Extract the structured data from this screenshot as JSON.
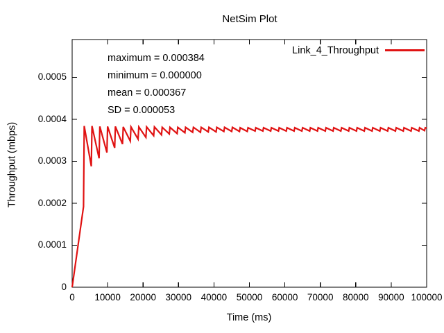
{
  "window": {
    "title": "NetSim Plot"
  },
  "chart_data": {
    "type": "line",
    "title": "NetSim Plot",
    "xlabel": "Time (ms)",
    "ylabel": "Throughput (mbps)",
    "xlim": [
      0,
      100000
    ],
    "ylim": [
      0,
      0.00059
    ],
    "grid": false,
    "x_ticks": [
      0,
      10000,
      20000,
      30000,
      40000,
      50000,
      60000,
      70000,
      80000,
      90000,
      100000
    ],
    "x_tick_labels": [
      "0",
      "10000",
      "20000",
      "30000",
      "40000",
      "50000",
      "60000",
      "70000",
      "80000",
      "90000",
      "100000"
    ],
    "y_ticks": [
      0,
      0.0001,
      0.0002,
      0.0003,
      0.0004,
      0.0005
    ],
    "y_tick_labels": [
      "0",
      "0.0001",
      "0.0002",
      "0.0003",
      "0.0004",
      "0.0005"
    ],
    "legend": {
      "position": "top-right",
      "entries": [
        {
          "label": "Link_4_Throughput",
          "color": "#e01212"
        }
      ]
    },
    "stats": [
      "maximum = 0.000384",
      "minimum = 0.000000",
      "mean = 0.000367",
      "SD = 0.000053"
    ],
    "series": [
      {
        "name": "Link_4_Throughput",
        "color": "#e01212",
        "points": [
          [
            0,
            0
          ],
          [
            3200,
            0.000192
          ],
          [
            3400,
            0.000384
          ],
          [
            5400,
            0.000288
          ],
          [
            5600,
            0.000384
          ],
          [
            7600,
            0.000307
          ],
          [
            7800,
            0.000383
          ],
          [
            9800,
            0.000321
          ],
          [
            10000,
            0.000383
          ],
          [
            12000,
            0.000332
          ],
          [
            12200,
            0.000383
          ],
          [
            14200,
            0.000341
          ],
          [
            14400,
            0.000382
          ],
          [
            16400,
            0.000348
          ],
          [
            16600,
            0.000382
          ],
          [
            18600,
            0.000353
          ],
          [
            18800,
            0.000382
          ],
          [
            20800,
            0.000357
          ],
          [
            21000,
            0.000382
          ],
          [
            23000,
            0.000361
          ],
          [
            23200,
            0.000382
          ],
          [
            25200,
            0.000363
          ],
          [
            25400,
            0.000381
          ],
          [
            27400,
            0.000365
          ],
          [
            27600,
            0.000381
          ],
          [
            29600,
            0.000366
          ],
          [
            29800,
            0.000381
          ],
          [
            31800,
            0.000368
          ],
          [
            32000,
            0.000381
          ],
          [
            34000,
            0.000369
          ],
          [
            34200,
            0.000381
          ],
          [
            36200,
            0.000369
          ],
          [
            36400,
            0.000381
          ],
          [
            38400,
            0.00037
          ],
          [
            38600,
            0.000381
          ],
          [
            40600,
            0.00037
          ],
          [
            40800,
            0.000381
          ],
          [
            42800,
            0.000371
          ],
          [
            43000,
            0.000381
          ],
          [
            45000,
            0.000371
          ],
          [
            45200,
            0.000381
          ],
          [
            47200,
            0.000371
          ],
          [
            47400,
            0.00038
          ],
          [
            49400,
            0.000371
          ],
          [
            49600,
            0.00038
          ],
          [
            51600,
            0.000372
          ],
          [
            51800,
            0.00038
          ],
          [
            53800,
            0.000372
          ],
          [
            54000,
            0.00038
          ],
          [
            56000,
            0.000372
          ],
          [
            56200,
            0.00038
          ],
          [
            58200,
            0.000372
          ],
          [
            58400,
            0.00038
          ],
          [
            60400,
            0.000372
          ],
          [
            60600,
            0.00038
          ],
          [
            62600,
            0.000372
          ],
          [
            62800,
            0.00038
          ],
          [
            64800,
            0.000372
          ],
          [
            65000,
            0.00038
          ],
          [
            67000,
            0.000372
          ],
          [
            67200,
            0.00038
          ],
          [
            69200,
            0.000372
          ],
          [
            69400,
            0.00038
          ],
          [
            71400,
            0.000372
          ],
          [
            71600,
            0.00038
          ],
          [
            73600,
            0.000372
          ],
          [
            73800,
            0.00038
          ],
          [
            75800,
            0.000372
          ],
          [
            76000,
            0.00038
          ],
          [
            78000,
            0.000372
          ],
          [
            78200,
            0.00038
          ],
          [
            80200,
            0.000372
          ],
          [
            80400,
            0.00038
          ],
          [
            82400,
            0.000372
          ],
          [
            82600,
            0.00038
          ],
          [
            84600,
            0.000372
          ],
          [
            84800,
            0.00038
          ],
          [
            86800,
            0.000372
          ],
          [
            87000,
            0.00038
          ],
          [
            89000,
            0.000372
          ],
          [
            89200,
            0.00038
          ],
          [
            91200,
            0.000372
          ],
          [
            91400,
            0.00038
          ],
          [
            93400,
            0.000372
          ],
          [
            93600,
            0.00038
          ],
          [
            95600,
            0.000372
          ],
          [
            95800,
            0.00038
          ],
          [
            97800,
            0.000372
          ],
          [
            98000,
            0.00038
          ],
          [
            99400,
            0.000373
          ],
          [
            99600,
            0.00038
          ],
          [
            100000,
            0.000379
          ]
        ]
      }
    ]
  }
}
